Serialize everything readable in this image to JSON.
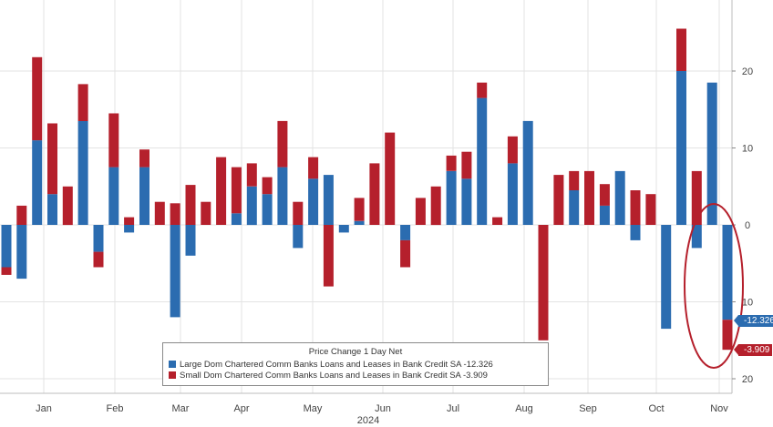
{
  "chart_data": {
    "type": "bar",
    "stacked": true,
    "legend": {
      "title": "Price Change 1 Day Net",
      "placement": "bottom-center",
      "entries": [
        "Large Dom Chartered Comm Banks Loans and Leases in Bank Credit SA -12.326",
        "Small Dom Chartered Comm Banks Loans and Leases in Bank Credit SA -3.909"
      ]
    },
    "x_tick_labels": [
      "Jan",
      "Feb",
      "Mar",
      "Apr",
      "May",
      "Jun",
      "Jul",
      "Aug",
      "Sep",
      "Oct",
      "Nov"
    ],
    "x_year_label": "2024",
    "y_tick_labels": [
      "20",
      "10",
      "0",
      "10",
      "20"
    ],
    "y_tick_values": [
      20,
      10,
      0,
      -10,
      -20
    ],
    "ylim": [
      -22,
      28
    ],
    "grid": true,
    "y_axis_side": "right",
    "colors": {
      "large": "#2b6cb0",
      "small": "#b5202c",
      "annotation": "#b5202c"
    },
    "series": [
      {
        "name": "Large Dom Chartered Comm Banks Loans and Leases in Bank Credit SA",
        "color": "#2b6cb0",
        "last_value_label": "-12.326",
        "values": [
          -5.5,
          -7,
          11,
          4,
          0,
          13.5,
          -3.5,
          7.5,
          -1,
          7.5,
          0,
          -12,
          -4,
          0,
          0,
          1.5,
          5,
          4,
          7.5,
          -3,
          6,
          6.5,
          -1,
          0.5,
          0,
          0,
          -2,
          0,
          0,
          7,
          6,
          16.5,
          0,
          8,
          13.5,
          0,
          0,
          4.5,
          0,
          2.5,
          7,
          -2,
          0,
          -13.5,
          20,
          -3,
          18.5,
          -12.326
        ]
      },
      {
        "name": "Small Dom Chartered Comm Banks Loans and Leases in Bank Credit SA",
        "color": "#b5202c",
        "last_value_label": "-3.909",
        "values": [
          -1,
          2.5,
          10.8,
          9.2,
          5,
          4.8,
          -2,
          7,
          1,
          2.3,
          3,
          2.8,
          5.2,
          3,
          8.8,
          6,
          3,
          2.2,
          6,
          3,
          2.8,
          -8,
          0,
          3,
          8,
          12,
          -3.5,
          3.5,
          5,
          2,
          3.5,
          2,
          1,
          3.5,
          0,
          -15,
          6.5,
          2.5,
          7,
          2.8,
          0,
          4.5,
          4,
          0,
          5.5,
          7,
          0,
          -3.909
        ]
      }
    ],
    "annotation": "circle around final bar"
  }
}
